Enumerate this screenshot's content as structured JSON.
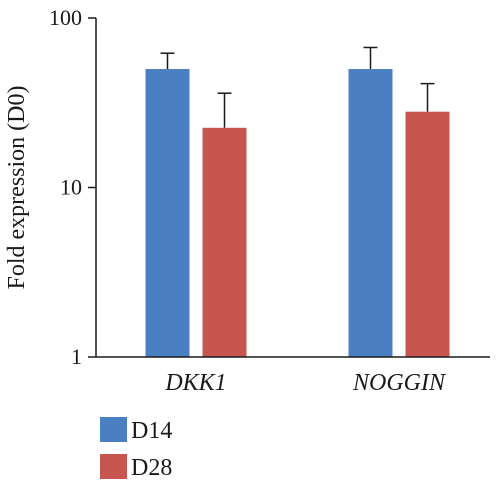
{
  "chart_data": {
    "type": "bar",
    "categories": [
      "DKK1",
      "NOGGIN"
    ],
    "series": [
      {
        "name": "D14",
        "color": "#4a7fc2",
        "values": [
          50,
          50
        ],
        "error": [
          62,
          67
        ]
      },
      {
        "name": "D28",
        "color": "#c75651",
        "values": [
          22.5,
          28
        ],
        "error": [
          36,
          41
        ]
      }
    ],
    "ylabel": "Fold expression (D0)",
    "yscale": "log",
    "ylim": [
      1,
      100
    ],
    "yticks": [
      {
        "value": 1,
        "label": "1"
      },
      {
        "value": 10,
        "label": "10"
      },
      {
        "value": 100,
        "label": "100"
      }
    ],
    "grid": false,
    "legend_position": "bottom-left"
  }
}
